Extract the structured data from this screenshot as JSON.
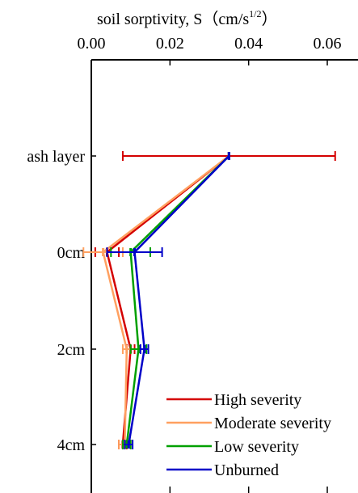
{
  "chart_data": {
    "type": "line",
    "title": "",
    "x_axis": {
      "label_main": "soil sorptivity, S（cm/s",
      "label_sup": "1/2",
      "label_close": "）",
      "range": [
        0,
        0.062
      ],
      "ticks": [
        0.0,
        0.02,
        0.04,
        0.06
      ],
      "tick_labels": [
        "0.00",
        "0.02",
        "0.04",
        "0.06"
      ],
      "position": "top"
    },
    "y_axis": {
      "categories": [
        "ash layer",
        "0cm",
        "2cm",
        "4cm"
      ],
      "inverted": true
    },
    "series": [
      {
        "name": "High severity",
        "color": "#d40000",
        "values": [
          0.035,
          0.004,
          0.01,
          0.008
        ],
        "err_low": [
          0.027,
          0.003,
          0.001,
          0.001
        ],
        "err_high": [
          0.027,
          0.003,
          0.001,
          0.001
        ]
      },
      {
        "name": "Moderate severity",
        "color": "#ffa060",
        "values": [
          0.035,
          0.003,
          0.009,
          0.0085
        ],
        "err_low": [
          0.0,
          0.005,
          0.001,
          0.0015
        ],
        "err_high": [
          0.0,
          0.005,
          0.001,
          0.0015
        ]
      },
      {
        "name": "Low severity",
        "color": "#00a000",
        "values": [
          0.035,
          0.01,
          0.012,
          0.009
        ],
        "err_low": [
          0.0,
          0.005,
          0.002,
          0.001
        ],
        "err_high": [
          0.0,
          0.005,
          0.002,
          0.001
        ]
      },
      {
        "name": "Unburned",
        "color": "#0000c8",
        "values": [
          0.035,
          0.011,
          0.0135,
          0.0095
        ],
        "err_low": [
          0.0,
          0.007,
          0.001,
          0.001
        ],
        "err_high": [
          0.0,
          0.007,
          0.001,
          0.001
        ]
      }
    ],
    "legend": {
      "position": "bottom-right",
      "entries": [
        "High severity",
        "Moderate severity",
        "Low severity",
        "Unburned"
      ]
    },
    "grid": false
  }
}
